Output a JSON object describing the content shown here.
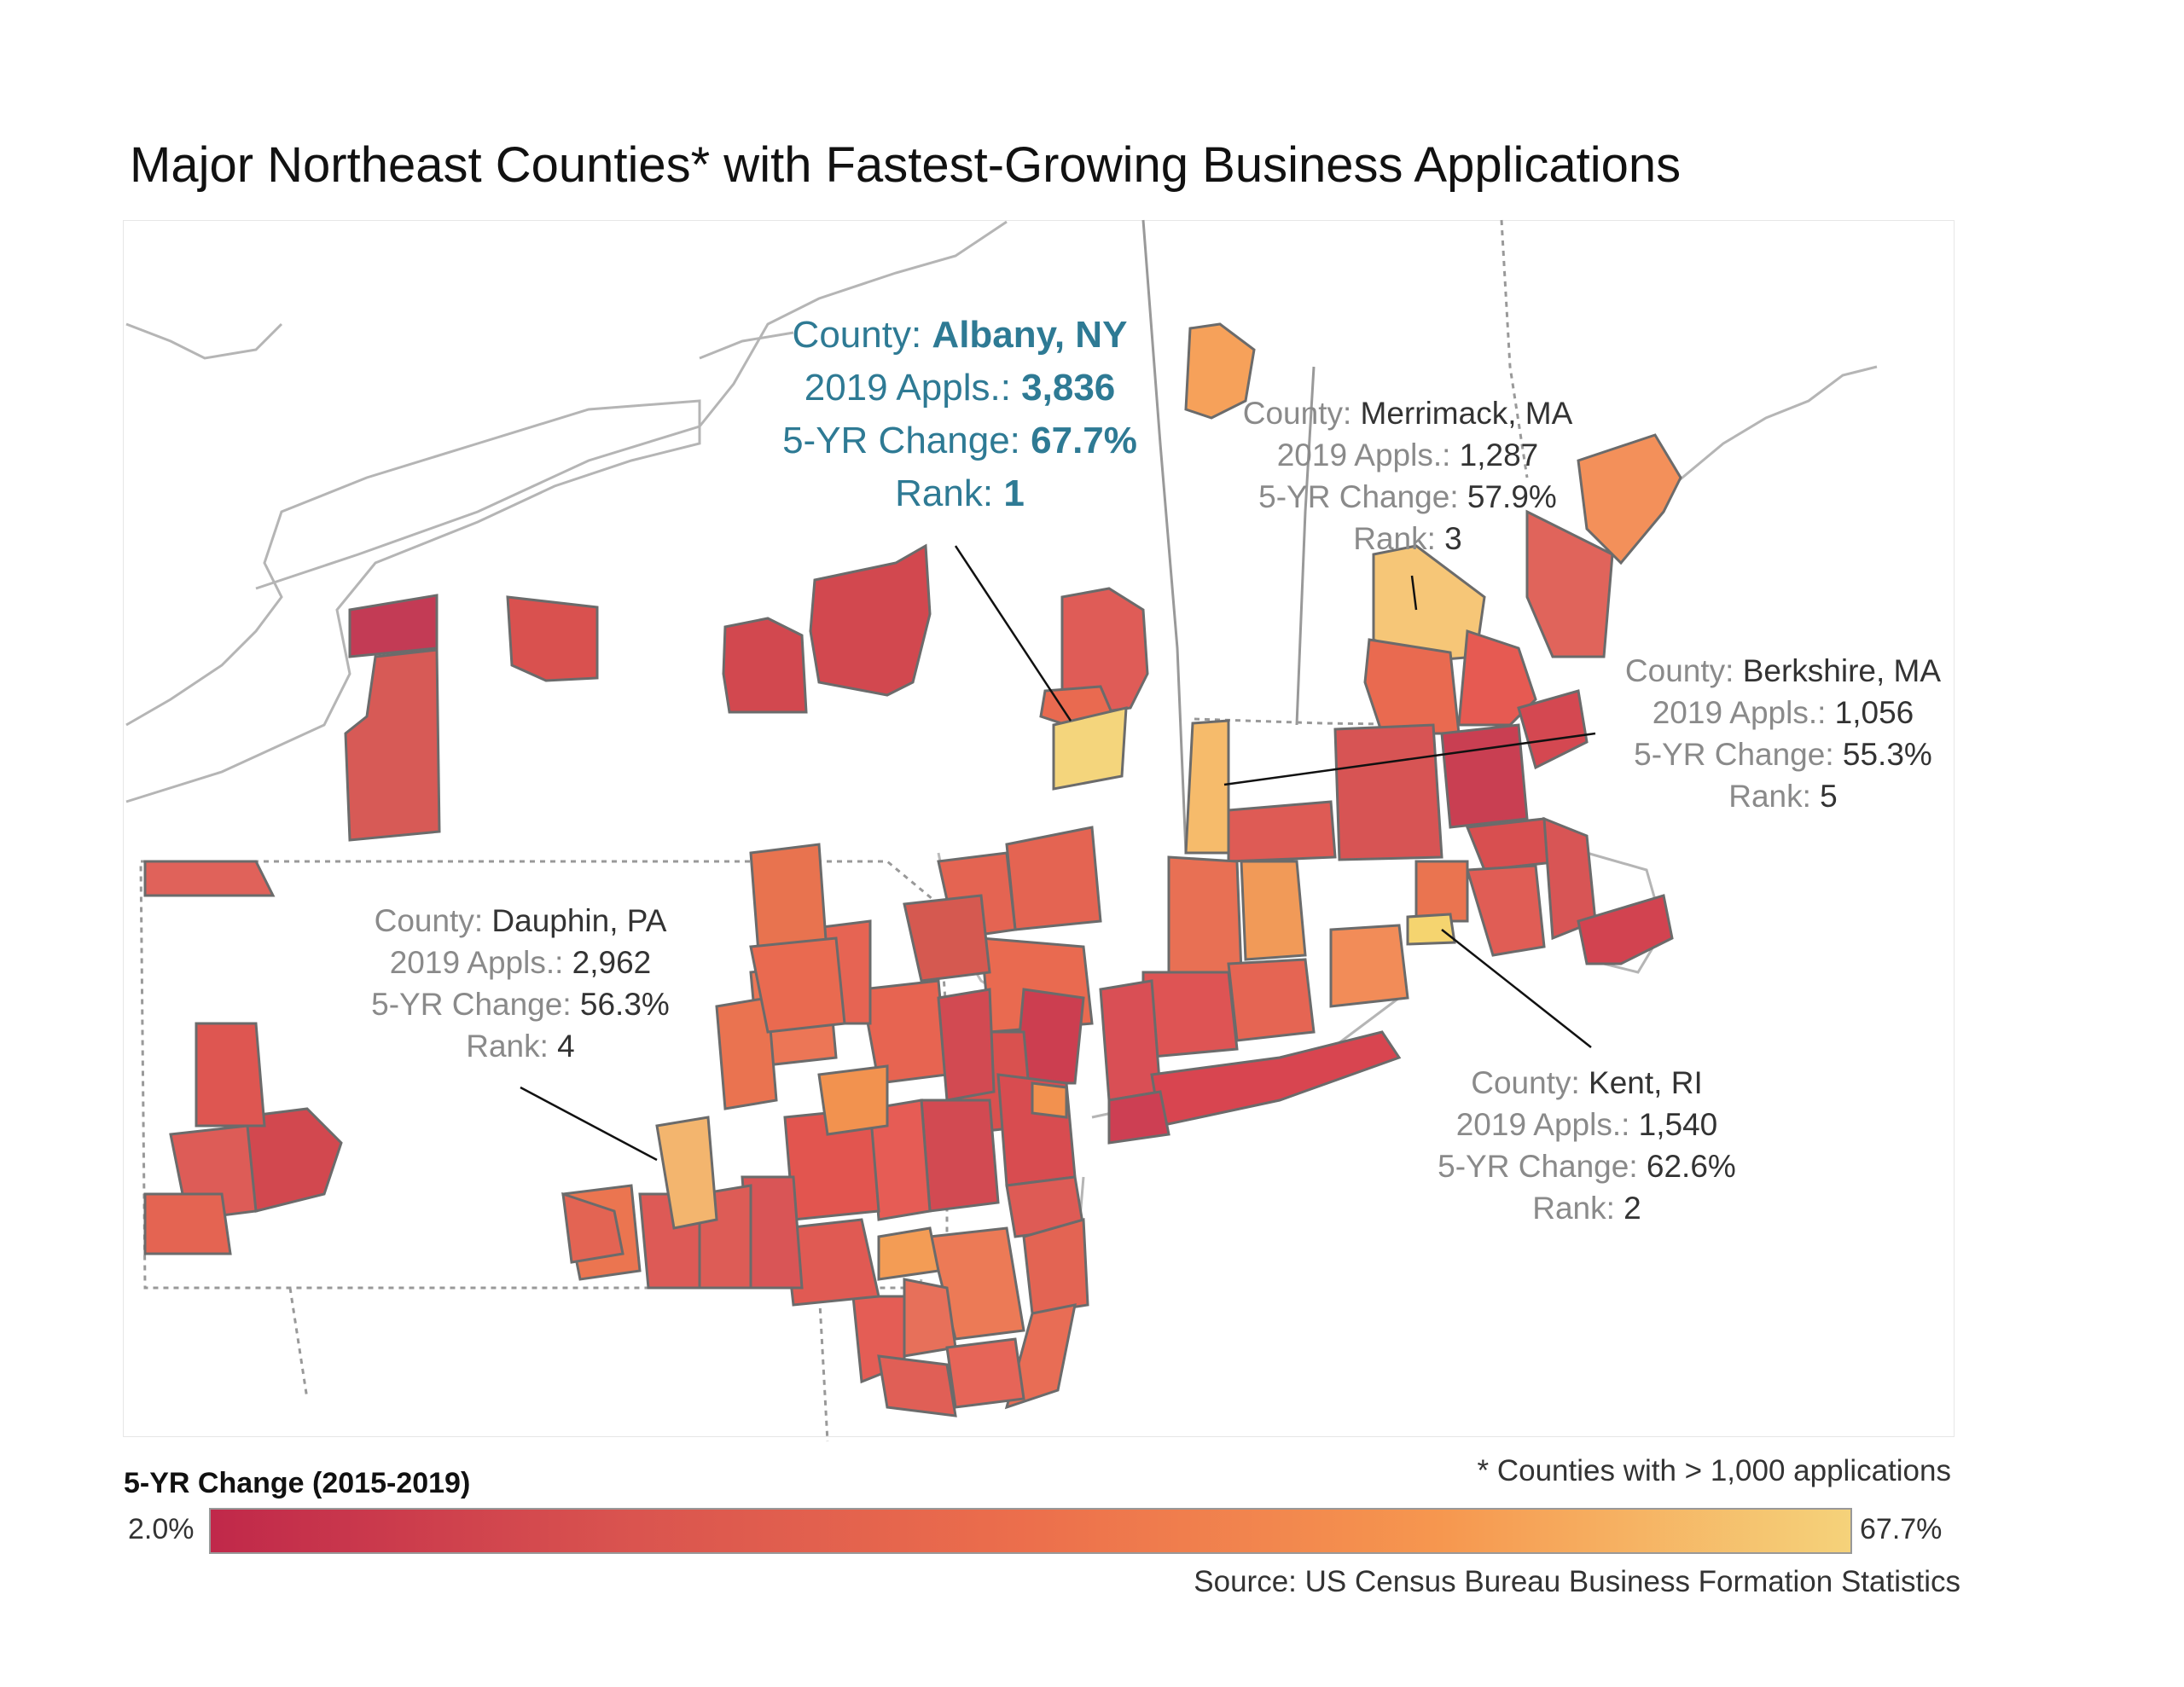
{
  "title": "Major Northeast Counties* with Fastest-Growing Business Applications",
  "labels": {
    "albany": {
      "county_key": "County:",
      "county": "Albany, NY",
      "appls_key": "2019 Appls.:",
      "appls": "3,836",
      "change_key": "5-YR Change:",
      "change": "67.7%",
      "rank_key": "Rank:",
      "rank": "1"
    },
    "merrimack": {
      "county_key": "County:",
      "county": "Merrimack, MA",
      "appls_key": "2019 Appls.:",
      "appls": "1,287",
      "change_key": "5-YR Change:",
      "change": "57.9%",
      "rank_key": "Rank:",
      "rank": "3"
    },
    "berkshire": {
      "county_key": "County:",
      "county": "Berkshire, MA",
      "appls_key": "2019 Appls.:",
      "appls": "1,056",
      "change_key": "5-YR Change:",
      "change": "55.3%",
      "rank_key": "Rank:",
      "rank": "5"
    },
    "dauphin": {
      "county_key": "County:",
      "county": "Dauphin, PA",
      "appls_key": "2019 Appls.:",
      "appls": "2,962",
      "change_key": "5-YR Change:",
      "change": "56.3%",
      "rank_key": "Rank:",
      "rank": "4"
    },
    "kent": {
      "county_key": "County:",
      "county": "Kent, RI",
      "appls_key": "2019 Appls.:",
      "appls": "1,540",
      "change_key": "5-YR Change:",
      "change": "62.6%",
      "rank_key": "Rank:",
      "rank": "2"
    }
  },
  "legend": {
    "title": "5-YR Change (2015-2019)",
    "min": "2.0%",
    "max": "67.7%",
    "colors": [
      "#c0284a",
      "#d9534f",
      "#ec6f4c",
      "#f6974f",
      "#f5d27a"
    ]
  },
  "footnote": "* Counties with > 1,000 applications",
  "source": "Source: US Census Bureau Business Formation Statistics",
  "colors": {
    "highlight_text": "#2e7a94",
    "county_border": "#6b6b6b",
    "state_line": "#aaaaaa"
  }
}
